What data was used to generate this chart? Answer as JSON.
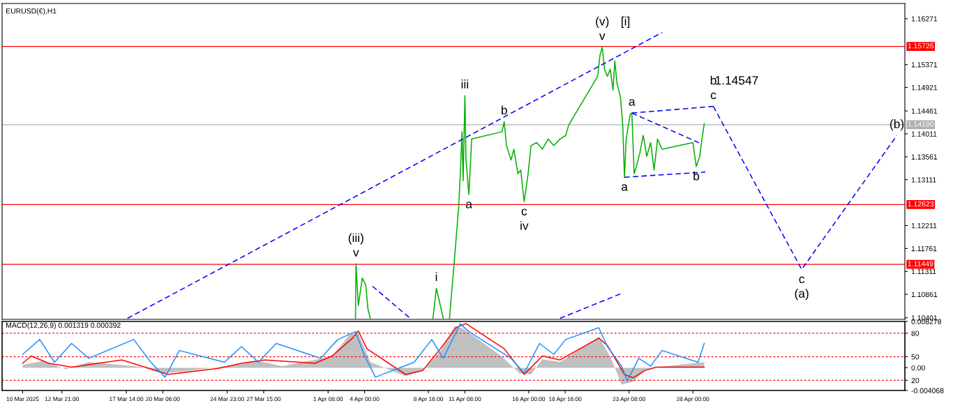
{
  "chart_data": [
    {
      "type": "line",
      "title": "EURUSD(€),H1",
      "xlim": [
        "2025-03-08T12:00",
        "2025-05-13T12:00"
      ],
      "ylim": [
        1.1037,
        1.1657
      ],
      "yticks": [
        1.16271,
        1.15371,
        1.14921,
        1.14461,
        1.14011,
        1.13561,
        1.13111,
        1.12211,
        1.11761,
        1.11311,
        1.10861,
        1.10401
      ],
      "tick_labels": "y",
      "grid": false,
      "legend": false,
      "series": [
        {
          "color": "#00b000",
          "x": [
            "2025-04-03T08:00",
            "2025-04-03T09:00",
            "2025-04-03T13:00",
            "2025-04-03T20:00",
            "2025-04-04T02:00",
            "2025-04-04T06:00",
            "2025-04-04T10:00",
            "2025-04-04T11:00",
            "2025-04-08T23:00",
            "2025-04-09T00:00",
            "2025-04-09T06:00",
            "2025-04-09T13:00",
            "2025-04-09T18:00",
            "2025-04-09T19:00",
            "2025-04-10T04:00",
            "2025-04-10T05:00",
            "2025-04-10T11:00",
            "2025-04-10T17:00",
            "2025-04-10T21:00",
            "2025-04-11T00:00",
            "2025-04-11T03:00",
            "2025-04-11T05:00",
            "2025-04-11T08:00",
            "2025-04-11T10:00",
            "2025-04-11T15:00",
            "2025-04-11T20:00",
            "2025-04-14T01:00",
            "2025-04-14T05:00",
            "2025-04-14T09:00",
            "2025-04-14T17:00",
            "2025-04-14T22:00",
            "2025-04-15T05:00",
            "2025-04-15T10:00",
            "2025-04-15T16:00",
            "2025-04-15T23:00",
            "2025-04-16T04:00",
            "2025-04-16T14:00",
            "2025-04-17T00:00",
            "2025-04-17T10:00",
            "2025-04-17T20:00",
            "2025-04-18T07:00",
            "2025-04-18T17:00",
            "2025-04-18T22:00",
            "2025-04-21T01:00",
            "2025-04-21T05:00",
            "2025-04-21T09:00",
            "2025-04-21T13:00",
            "2025-04-21T18:00",
            "2025-04-21T23:00",
            "2025-04-22T04:00",
            "2025-04-22T07:00",
            "2025-04-22T11:00",
            "2025-04-22T17:00",
            "2025-04-22T21:00",
            "2025-04-23T00:00",
            "2025-04-23T03:00",
            "2025-04-23T10:00",
            "2025-04-23T13:00",
            "2025-04-23T17:00",
            "2025-04-23T21:00",
            "2025-04-24T03:00",
            "2025-04-24T09:00",
            "2025-04-24T15:00",
            "2025-04-24T22:00",
            "2025-04-25T04:00",
            "2025-04-25T10:00",
            "2025-04-25T18:00",
            "2025-04-28T00:00",
            "2025-04-28T06:00",
            "2025-04-28T12:00",
            "2025-04-28T16:00",
            "2025-04-28T20:00"
          ],
          "values": [
            1.1039,
            1.1146,
            1.1064,
            1.1118,
            1.1105,
            1.1057,
            1.1039,
            null,
            null,
            1.1039,
            1.1098,
            1.1064,
            1.1039,
            null,
            null,
            1.1039,
            1.1118,
            1.12,
            1.1255,
            1.1323,
            1.1405,
            1.1309,
            1.1476,
            1.135,
            1.1282,
            1.1391,
            1.1405,
            1.1425,
            1.1378,
            1.135,
            1.1371,
            1.1323,
            1.133,
            1.1268,
            1.1323,
            1.1378,
            1.1384,
            1.1371,
            1.1391,
            1.1378,
            1.1391,
            1.1398,
            1.1418,
            1.1514,
            1.1555,
            1.1571,
            1.1528,
            1.1514,
            1.1528,
            1.1487,
            1.1544,
            1.15,
            1.1473,
            1.1418,
            1.1316,
            1.1391,
            1.1439,
            1.1442,
            1.1323,
            1.1337,
            1.1364,
            1.1398,
            1.1357,
            1.1384,
            1.133,
            1.1391,
            1.1371,
            1.1384,
            1.1337,
            1.1357,
            1.1391,
            1.1421
          ]
        },
        {
          "color": "#0000ff",
          "line_style": "dashed",
          "x": [
            "2025-03-17T16:00",
            "2025-04-25T18:00"
          ],
          "values": [
            1.1039,
            1.16
          ]
        },
        {
          "color": "#0000ff",
          "line_style": "dashed",
          "x": [
            "2025-04-18T07:00",
            "2025-04-22T19:00"
          ],
          "values": [
            1.1039,
            1.1088
          ]
        },
        {
          "color": "#0000ff",
          "line_style": "dashed",
          "x": [
            "2025-04-04T14:00",
            "2025-04-07T08:00"
          ],
          "values": [
            1.1102,
            1.1039
          ]
        },
        {
          "color": "#0000ff",
          "line_style": "dashed",
          "x": [
            "2025-04-23T13:00",
            "2025-04-29T12:00"
          ],
          "values": [
            1.1442,
            1.1455
          ]
        },
        {
          "color": "#0000ff",
          "line_style": "dashed",
          "x": [
            "2025-04-23T13:00",
            "2025-04-28T14:00"
          ],
          "values": [
            1.1442,
            1.1382
          ]
        },
        {
          "color": "#0000ff",
          "line_style": "dashed",
          "x": [
            "2025-04-23T00:00",
            "2025-04-28T22:00"
          ],
          "values": [
            1.1316,
            1.1326
          ]
        },
        {
          "color": "#0000ff",
          "line_style": "dashed",
          "x": [
            "2025-04-29T12:00",
            "2025-05-05T23:00",
            "2025-05-12T22:00"
          ],
          "values": [
            1.1455,
            1.1135,
            1.1398
          ]
        }
      ],
      "ref_lines": [
        {
          "axis": "y",
          "value": 1.15726,
          "label": "1.15726",
          "color": "#ff0000",
          "line_style": "solid"
        },
        {
          "axis": "y",
          "value": 1.12623,
          "label": "1.12623",
          "color": "#ff0000",
          "line_style": "solid"
        },
        {
          "axis": "y",
          "value": 1.11449,
          "label": "1.11449",
          "color": "#ff0000",
          "line_style": "solid"
        },
        {
          "axis": "y",
          "value": 1.1419,
          "label": "1.14190",
          "color": "#b0b0b0",
          "line_style": "solid"
        }
      ],
      "annotations": [
        {
          "text": "v",
          "x": "2025-04-03T09:00",
          "y": 1.1146
        },
        {
          "text": "(iii)",
          "x": "2025-04-03T09:00",
          "y": 1.1146
        },
        {
          "text": "i",
          "x": "2025-04-09T06:00",
          "y": 1.1098
        },
        {
          "text": "iii",
          "x": "2025-04-11T08:00",
          "y": 1.1476
        },
        {
          "text": "b",
          "x": "2025-04-14T05:00",
          "y": 1.1425
        },
        {
          "text": "a",
          "x": "2025-04-11T15:00",
          "y": 1.1282
        },
        {
          "text": "c",
          "x": "2025-04-15T16:00",
          "y": 1.1268
        },
        {
          "text": "iv",
          "x": "2025-04-15T16:00",
          "y": 1.1268
        },
        {
          "text": "v",
          "x": "2025-04-21T09:00",
          "y": 1.1571
        },
        {
          "text": "(v)",
          "x": "2025-04-21T09:00",
          "y": 1.1571
        },
        {
          "text": "[i]",
          "x": "2025-04-21T09:00",
          "y": 1.1571
        },
        {
          "text": "a",
          "x": "2025-04-23T13:00",
          "y": 1.1442
        },
        {
          "text": "a",
          "x": "2025-04-23T00:00",
          "y": 1.1316
        },
        {
          "text": "b",
          "x": "2025-04-28T06:00",
          "y": 1.1337
        },
        {
          "text": "c",
          "x": "2025-04-29T12:00",
          "y": 1.1455
        },
        {
          "text": "b",
          "x": "2025-04-29T12:00",
          "y": 1.1455
        },
        {
          "text": "1.14547",
          "x": "2025-04-29T12:00",
          "y": 1.1455
        },
        {
          "text": "c",
          "x": "2025-05-05T23:00",
          "y": 1.1135
        },
        {
          "text": "(a)",
          "x": "2025-05-05T23:00",
          "y": 1.1135
        },
        {
          "text": "(b)",
          "x": "2025-05-12T22:00",
          "y": 1.1398
        }
      ]
    },
    {
      "type": "line",
      "title": "MACD(12,26,9) 0.001319 0.000392",
      "xlim": [
        "2025-03-08T12:00",
        "2025-05-13T12:00"
      ],
      "ylim": [
        7,
        95
      ],
      "yticks": [
        80,
        50,
        20
      ],
      "y2lim": [
        -0.004068,
        0.008278
      ],
      "y2ticks": [
        0.008278,
        {
          "value": 0,
          "label": "0.00"
        },
        -0.004068
      ],
      "xticks": [
        {
          "value": "2025-03-10T00:00",
          "label": "10 Mar 2025"
        },
        {
          "value": "2025-03-12T21:00",
          "label": "12 Mar 21:00"
        },
        {
          "value": "2025-03-17T14:00",
          "label": "17 Mar 14:00"
        },
        {
          "value": "2025-03-20T06:00",
          "label": "20 Mar 06:00"
        },
        {
          "value": "2025-03-24T23:00",
          "label": "24 Mar 23:00"
        },
        {
          "value": "2025-03-27T15:00",
          "label": "27 Mar 15:00"
        },
        {
          "value": "2025-04-01T08:00",
          "label": "1 Apr 08:00"
        },
        {
          "value": "2025-04-04T00:00",
          "label": "4 Apr 00:00"
        },
        {
          "value": "2025-04-08T16:00",
          "label": "8 Apr 16:00"
        },
        {
          "value": "2025-04-11T08:00",
          "label": "11 Apr 08:00"
        },
        {
          "value": "2025-04-16T00:00",
          "label": "16 Apr 00:00"
        },
        {
          "value": "2025-04-18T16:00",
          "label": "18 Apr 16:00"
        },
        {
          "value": "2025-04-23T08:00",
          "label": "23 Apr 08:00"
        },
        {
          "value": "2025-04-28T00:00",
          "label": "28 Apr 00:00"
        }
      ],
      "grid": false,
      "legend": false,
      "series": [
        {
          "type": "area",
          "axis": "y2",
          "color": "#c0c0c0",
          "x": [
            "2025-03-10T00:00",
            "2025-03-11T11:00",
            "2025-03-13T04:00",
            "2025-03-14T20:00",
            "2025-03-18T13:00",
            "2025-03-20T05:00",
            "2025-03-21T22:00",
            "2025-03-25T14:00",
            "2025-03-27T06:00",
            "2025-03-28T23:00",
            "2025-04-01T15:00",
            "2025-04-02T22:00",
            "2025-04-03T13:00",
            "2025-04-04T10:00",
            "2025-04-07T00:00",
            "2025-04-08T06:00",
            "2025-04-09T13:00",
            "2025-04-10T14:00",
            "2025-04-11T05:00",
            "2025-04-14T01:00",
            "2025-04-15T08:00",
            "2025-04-16T04:00",
            "2025-04-17T00:00",
            "2025-04-18T07:00",
            "2025-04-21T03:00",
            "2025-04-21T23:00",
            "2025-04-22T19:00",
            "2025-04-23T15:00",
            "2025-04-24T12:00",
            "2025-04-25T18:00",
            "2025-04-28T20:00"
          ],
          "values": [
            0.0005,
            0.0012,
            -0.0003,
            0.001,
            0.0002,
            -0.001,
            -0.0006,
            0.0005,
            0.0012,
            0.0003,
            0.002,
            0.006,
            0.0062,
            0.001,
            -0.0015,
            -0.0005,
            0.003,
            0.0075,
            0.007,
            0.002,
            -0.001,
            -0.0012,
            0.0015,
            0.001,
            0.0055,
            0.002,
            -0.003,
            -0.0025,
            -0.0005,
            0.0002,
            0.001
          ]
        },
        {
          "type": "line",
          "axis": "y2",
          "color": "#ff0000",
          "x": [
            "2025-03-10T00:00",
            "2025-03-10T15:00",
            "2025-03-11T22:00",
            "2025-03-13T14:00",
            "2025-03-17T06:00",
            "2025-03-18T23:00",
            "2025-03-20T15:00",
            "2025-03-24T08:00",
            "2025-03-26T00:00",
            "2025-03-27T17:00",
            "2025-03-31T09:00",
            "2025-04-01T15:00",
            "2025-04-03T03:00",
            "2025-04-03T13:00",
            "2025-04-04T04:00",
            "2025-04-07T00:00",
            "2025-04-08T06:00",
            "2025-04-09T13:00",
            "2025-04-10T17:00",
            "2025-04-11T10:00",
            "2025-04-14T05:00",
            "2025-04-15T16:00",
            "2025-04-17T00:00",
            "2025-04-18T07:00",
            "2025-04-21T03:00",
            "2025-04-21T18:00",
            "2025-04-23T00:00",
            "2025-04-23T15:00",
            "2025-04-24T12:00",
            "2025-04-25T08:00",
            "2025-04-28T20:00"
          ],
          "values": [
            0.0008,
            0.0021,
            0.0008,
            0.0001,
            0.0014,
            0.0001,
            -0.0012,
            -0.0001,
            0.0008,
            0.0014,
            0.0008,
            0.0021,
            0.0053,
            0.0066,
            0.0034,
            -0.0012,
            -0.0005,
            0.0034,
            0.0072,
            0.0079,
            0.0034,
            -0.0012,
            0.0021,
            0.0014,
            0.0053,
            0.004,
            -0.0012,
            -0.0018,
            -0.0005,
            0.0001,
            0.0001
          ]
        },
        {
          "type": "line",
          "color": "#1e90ff",
          "x": [
            "2025-03-10T00:00",
            "2025-03-11T06:00",
            "2025-03-12T08:00",
            "2025-03-13T14:00",
            "2025-03-14T20:00",
            "2025-03-18T03:00",
            "2025-03-19T09:00",
            "2025-03-20T10:00",
            "2025-03-21T11:00",
            "2025-03-24T18:00",
            "2025-03-26T00:00",
            "2025-03-27T06:00",
            "2025-03-28T13:00",
            "2025-03-31T19:00",
            "2025-04-02T01:00",
            "2025-04-03T08:00",
            "2025-04-03T23:00",
            "2025-04-04T19:00",
            "2025-04-07T15:00",
            "2025-04-08T22:00",
            "2025-04-09T18:00",
            "2025-04-11T00:00",
            "2025-04-11T15:00",
            "2025-04-14T17:00",
            "2025-04-15T16:00",
            "2025-04-16T19:00",
            "2025-04-17T20:00",
            "2025-04-18T17:00",
            "2025-04-21T03:00",
            "2025-04-21T18:00",
            "2025-04-22T19:00",
            "2025-04-23T05:00",
            "2025-04-24T01:00",
            "2025-04-24T22:00",
            "2025-04-25T18:00",
            "2025-04-28T09:00",
            "2025-04-28T20:00"
          ],
          "values": [
            53,
            72,
            43,
            67,
            48,
            72,
            43,
            24,
            58,
            43,
            63,
            43,
            67,
            48,
            72,
            82,
            53,
            24,
            43,
            72,
            48,
            92,
            82,
            48,
            29,
            67,
            53,
            72,
            87,
            63,
            38,
            19,
            48,
            38,
            58,
            43,
            67
          ]
        }
      ],
      "ref_lines": [
        {
          "axis": "y",
          "value": 80,
          "color": "#ff0000",
          "line_style": "dotted"
        },
        {
          "axis": "y",
          "value": 50,
          "color": "#ff0000",
          "line_style": "dotted"
        },
        {
          "axis": "y",
          "value": 20,
          "color": "#ff0000",
          "line_style": "dotted"
        }
      ]
    }
  ]
}
